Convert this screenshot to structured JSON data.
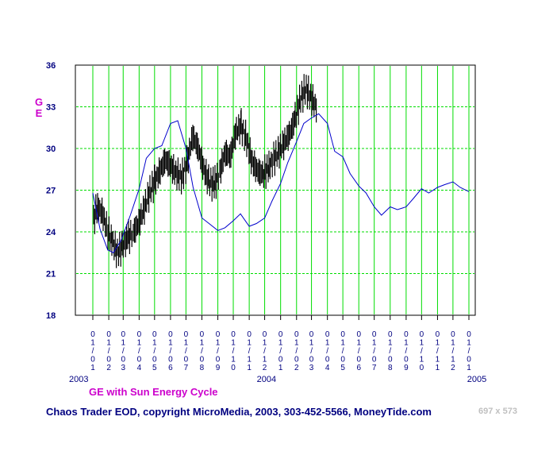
{
  "chart_data": {
    "type": "line",
    "title": "GE with Sun Energy Cycle",
    "ylabel": "GE",
    "ylim": [
      18,
      36
    ],
    "yticks": [
      "36",
      "33",
      "30",
      "27",
      "24",
      "21",
      "18"
    ],
    "grid": true,
    "x_tick_labels": [
      "01/01",
      "01/02",
      "01/03",
      "01/04",
      "01/05",
      "01/06",
      "01/07",
      "01/08",
      "01/09",
      "01/10",
      "01/11",
      "01/12",
      "01/01",
      "01/02",
      "01/03",
      "01/04",
      "01/05",
      "01/06",
      "01/07",
      "01/08",
      "01/09",
      "01/10",
      "01/11",
      "01/12",
      "01/01"
    ],
    "year_labels": [
      "2003",
      "2004",
      "2005"
    ],
    "colors": {
      "price": "#000000",
      "cycle": "#0000cc",
      "grid": "#00dd00",
      "axis_text": "#000080",
      "title": "#cc00cc"
    },
    "series": [
      {
        "name": "GE",
        "style": "price-bars",
        "x": [
          "2003-01-02",
          "2003-01-10",
          "2003-01-20",
          "2003-01-29",
          "2003-02-07",
          "2003-02-17",
          "2003-02-27",
          "2003-03-10",
          "2003-03-20",
          "2003-03-31",
          "2003-04-10",
          "2003-04-21",
          "2003-05-01",
          "2003-05-12",
          "2003-05-22",
          "2003-06-02",
          "2003-06-12",
          "2003-06-23",
          "2003-07-03",
          "2003-07-14",
          "2003-07-24",
          "2003-08-04",
          "2003-08-14",
          "2003-08-25",
          "2003-09-04",
          "2003-09-15",
          "2003-09-25",
          "2003-10-06",
          "2003-10-16",
          "2003-10-27",
          "2003-11-06",
          "2003-11-17",
          "2003-11-27",
          "2003-12-08",
          "2003-12-18",
          "2003-12-29",
          "2004-01-08",
          "2004-01-19",
          "2004-01-29",
          "2004-02-09",
          "2004-02-19",
          "2004-03-01",
          "2004-03-11"
        ],
        "y": [
          24.8,
          25.8,
          25.3,
          24.1,
          23.4,
          22.5,
          22.9,
          23.6,
          23.9,
          24.6,
          25.6,
          26.8,
          27.6,
          28.4,
          29.2,
          28.7,
          28.2,
          27.9,
          28.9,
          30.9,
          30.1,
          28.6,
          27.6,
          27.4,
          28.2,
          29.7,
          29.4,
          31.2,
          31.6,
          30.6,
          29.1,
          28.4,
          28.1,
          28.6,
          29.2,
          29.8,
          30.4,
          31.1,
          32.1,
          33.6,
          34.3,
          33.6,
          32.9
        ]
      },
      {
        "name": "Sun Energy Cycle",
        "style": "line",
        "x": [
          "2003-01-01",
          "2003-01-15",
          "2003-01-30",
          "2003-02-10",
          "2003-02-25",
          "2003-03-15",
          "2003-04-01",
          "2003-04-15",
          "2003-05-01",
          "2003-05-15",
          "2003-06-01",
          "2003-06-15",
          "2003-07-01",
          "2003-07-15",
          "2003-08-01",
          "2003-08-15",
          "2003-09-01",
          "2003-09-15",
          "2003-10-01",
          "2003-10-15",
          "2003-11-01",
          "2003-11-15",
          "2003-12-01",
          "2003-12-15",
          "2004-01-01",
          "2004-01-15",
          "2004-02-01",
          "2004-02-15",
          "2004-03-01",
          "2004-03-15",
          "2004-04-01",
          "2004-04-15",
          "2004-05-01",
          "2004-05-15",
          "2004-06-01",
          "2004-06-15",
          "2004-07-01",
          "2004-07-15",
          "2004-08-01",
          "2004-08-15",
          "2004-09-01",
          "2004-09-15",
          "2004-10-01",
          "2004-10-15",
          "2004-11-01",
          "2004-11-15",
          "2004-12-01",
          "2004-12-15",
          "2005-01-01"
        ],
        "y": [
          26.8,
          24.2,
          22.7,
          22.5,
          23.4,
          25.2,
          27.1,
          29.3,
          30.0,
          30.2,
          31.8,
          32.0,
          30.0,
          27.2,
          25.0,
          24.6,
          24.1,
          24.3,
          24.8,
          25.3,
          24.4,
          24.6,
          25.0,
          26.2,
          27.5,
          29.0,
          30.5,
          31.8,
          32.2,
          32.5,
          31.8,
          29.8,
          29.4,
          28.2,
          27.3,
          26.8,
          25.8,
          25.2,
          25.8,
          25.6,
          25.8,
          26.4,
          27.1,
          26.8,
          27.2,
          27.4,
          27.6,
          27.2,
          26.9
        ]
      }
    ]
  },
  "footer": "Chaos Trader EOD, copyright MicroMedia, 2003, 303-452-5566, MoneyTide.com",
  "dims_label": "697 x 573"
}
